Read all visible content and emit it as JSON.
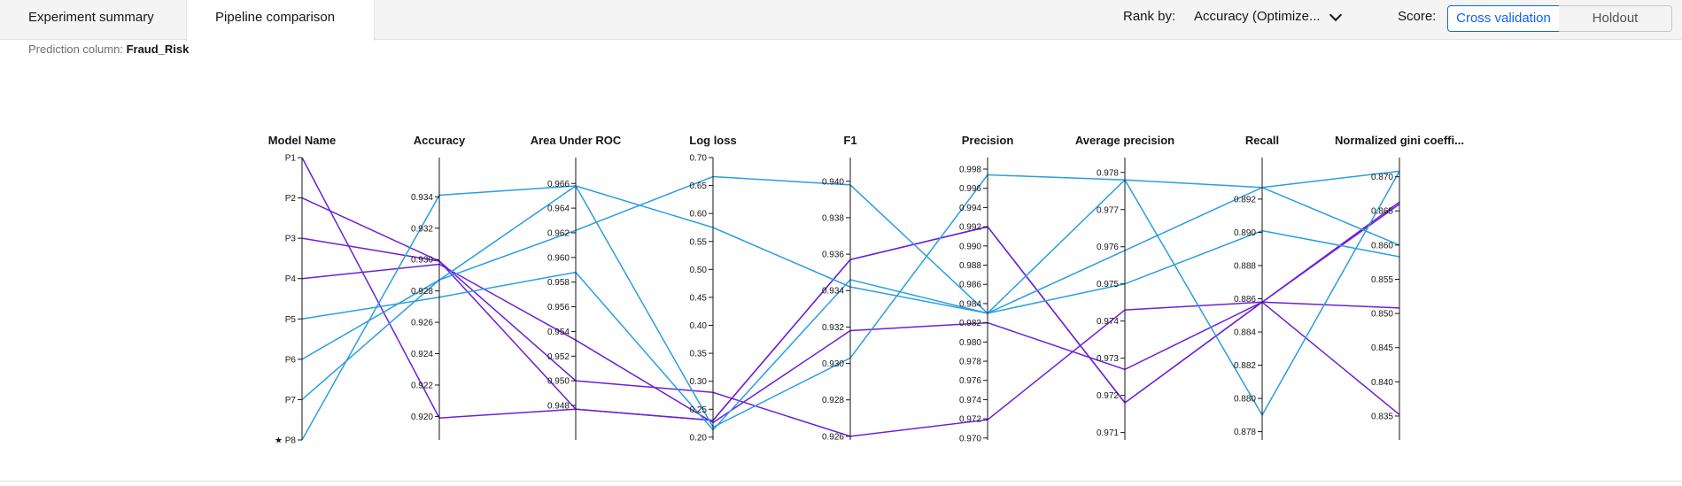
{
  "tabs": [
    "Experiment summary",
    "Pipeline comparison"
  ],
  "rank": {
    "label": "Rank by:",
    "value": "Accuracy (Optimize..."
  },
  "score": {
    "label": "Score:",
    "options": [
      "Cross validation",
      "Holdout"
    ]
  },
  "prediction": {
    "label": "Prediction column:",
    "value": "Fraud_Risk"
  },
  "chart_data": {
    "type": "parallel_coordinates",
    "colors": {
      "blue": "#2a9ee1",
      "purple": "#6c1fd9"
    },
    "axes": [
      {
        "label": "Model Name",
        "ticks": [
          "P1",
          "P2",
          "P3",
          "P4",
          "P5",
          "P6",
          "P7",
          "★ P8"
        ]
      },
      {
        "label": "Accuracy",
        "range": [
          0.9185,
          0.9365
        ],
        "ticks": [
          "0.934",
          "0.932",
          "0.930",
          "0.928",
          "0.926",
          "0.924",
          "0.922",
          "0.920"
        ]
      },
      {
        "label": "Area Under ROC",
        "range": [
          0.9452,
          0.9681
        ],
        "ticks": [
          "0.966",
          "0.964",
          "0.962",
          "0.960",
          "0.958",
          "0.956",
          "0.954",
          "0.952",
          "0.950",
          "0.948"
        ]
      },
      {
        "label": "Log loss",
        "range": [
          0.195,
          0.7
        ],
        "ticks": [
          "0.70",
          "0.65",
          "0.60",
          "0.55",
          "0.50",
          "0.45",
          "0.40",
          "0.35",
          "0.30",
          "0.25",
          "0.20"
        ]
      },
      {
        "label": "F1",
        "range": [
          0.9258,
          0.9413
        ],
        "ticks": [
          "0.940",
          "0.938",
          "0.936",
          "0.934",
          "0.932",
          "0.930",
          "0.928",
          "0.926"
        ]
      },
      {
        "label": "Precision",
        "range": [
          0.9698,
          0.9992
        ],
        "ticks": [
          "0.998",
          "0.996",
          "0.994",
          "0.992",
          "0.990",
          "0.988",
          "0.986",
          "0.984",
          "0.982",
          "0.980",
          "0.978",
          "0.976",
          "0.974",
          "0.972",
          "0.970"
        ]
      },
      {
        "label": "Average precision",
        "range": [
          0.9708,
          0.9784
        ],
        "ticks": [
          "0.978",
          "0.977",
          "0.976",
          "0.975",
          "0.974",
          "0.973",
          "0.972",
          "0.971"
        ]
      },
      {
        "label": "Recall",
        "range": [
          0.8775,
          0.8945
        ],
        "ticks": [
          "0.892",
          "0.890",
          "0.888",
          "0.886",
          "0.884",
          "0.882",
          "0.880",
          "0.878"
        ]
      },
      {
        "label": "Normalized gini coeffi...",
        "range": [
          0.8315,
          0.8728
        ],
        "ticks": [
          "0.870",
          "0.865",
          "0.860",
          "0.855",
          "0.850",
          "0.845",
          "0.840",
          "0.835"
        ]
      }
    ],
    "pipelines": [
      {
        "name": "P1",
        "color": "purple",
        "values": [
          0.9199,
          0.9477,
          0.23,
          0.9357,
          0.992,
          0.9718,
          0.8858,
          0.8352
        ]
      },
      {
        "name": "P2",
        "color": "purple",
        "values": [
          0.9299,
          0.9477,
          0.23,
          0.9357,
          0.992,
          0.9718,
          0.8858,
          0.8663
        ]
      },
      {
        "name": "P3",
        "color": "purple",
        "values": [
          0.9299,
          0.95,
          0.28,
          0.926,
          0.9719,
          0.9743,
          0.8858,
          0.8508
        ]
      },
      {
        "name": "P4",
        "color": "purple",
        "values": [
          0.9297,
          0.9533,
          0.226,
          0.9318,
          0.982,
          0.9727,
          0.8858,
          0.866
        ]
      },
      {
        "name": "P5",
        "color": "blue",
        "values": [
          0.9276,
          0.9588,
          0.213,
          0.9346,
          0.983,
          0.9759,
          0.8927,
          0.86
        ]
      },
      {
        "name": "P6",
        "color": "blue",
        "values": [
          0.9287,
          0.9658,
          0.575,
          0.9342,
          0.983,
          0.975,
          0.8901,
          0.8583
        ]
      },
      {
        "name": "P7",
        "color": "blue",
        "values": [
          0.9287,
          0.9622,
          0.666,
          0.9398,
          0.983,
          0.9778,
          0.8927,
          0.8708
        ]
      },
      {
        "name": "★ P8",
        "color": "blue",
        "values": [
          0.9341,
          0.9658,
          0.218,
          0.9303,
          0.9974,
          0.9778,
          0.879,
          0.8708
        ]
      }
    ]
  }
}
